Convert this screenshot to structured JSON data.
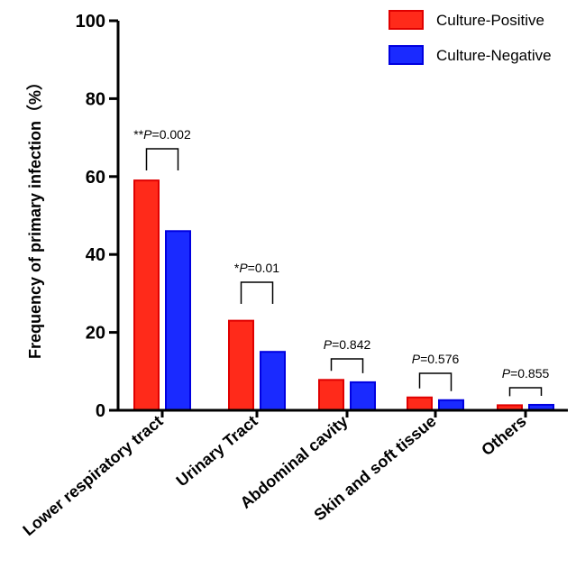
{
  "chart_data": {
    "type": "bar",
    "title": "",
    "xlabel": "",
    "ylabel": "Frequency of primary infection（%）",
    "ylim": [
      0,
      100
    ],
    "yticks": [
      0,
      20,
      40,
      60,
      80,
      100
    ],
    "categories": [
      "Lower respiratory tract",
      "Urinary Tract",
      "Abdominal cavity",
      "Skin and soft tissue",
      "Others"
    ],
    "series": [
      {
        "name": "Culture-Positive",
        "color": "#ff2a1a",
        "edge": "#e00000",
        "values": [
          59,
          23,
          7.8,
          3.3,
          1.3
        ]
      },
      {
        "name": "Culture-Negative",
        "color": "#1a2aff",
        "edge": "#0000e0",
        "values": [
          46,
          15,
          7.2,
          2.6,
          1.4
        ]
      }
    ],
    "legend_position": "top-right",
    "annotations": [
      {
        "stars": "**",
        "p": "P",
        "rest": "=0.002"
      },
      {
        "stars": "*",
        "p": "P",
        "rest": "=0.01"
      },
      {
        "stars": "",
        "p": "P",
        "rest": "=0.842"
      },
      {
        "stars": "",
        "p": "P",
        "rest": "=0.576"
      },
      {
        "stars": "",
        "p": "P",
        "rest": "=0.855"
      }
    ]
  }
}
